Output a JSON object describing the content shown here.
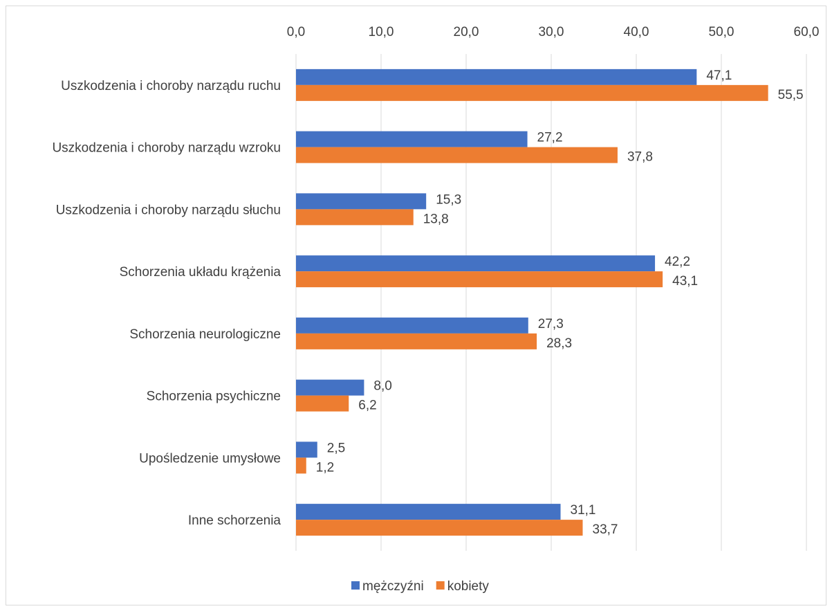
{
  "chart_data": {
    "type": "bar",
    "orientation": "horizontal",
    "categories": [
      "Uszkodzenia i choroby narządu ruchu",
      "Uszkodzenia i choroby narządu wzroku",
      "Uszkodzenia i choroby narządu słuchu",
      "Schorzenia układu krążenia",
      "Schorzenia neurologiczne",
      "Schorzenia psychiczne",
      "Upośledzenie umysłowe",
      "Inne schorzenia"
    ],
    "series": [
      {
        "name": "mężczyźni",
        "color": "#4472c4",
        "values": [
          47.1,
          27.2,
          15.3,
          42.2,
          27.3,
          8.0,
          2.5,
          31.1
        ],
        "labels": [
          "47,1",
          "27,2",
          "15,3",
          "42,2",
          "27,3",
          "8,0",
          "2,5",
          "31,1"
        ]
      },
      {
        "name": "kobiety",
        "color": "#ed7d31",
        "values": [
          55.5,
          37.8,
          13.8,
          43.1,
          28.3,
          6.2,
          1.2,
          33.7
        ],
        "labels": [
          "55,5",
          "37,8",
          "13,8",
          "43,1",
          "28,3",
          "6,2",
          "1,2",
          "33,7"
        ]
      }
    ],
    "xlim": [
      0,
      60
    ],
    "ticks": [
      0,
      10,
      20,
      30,
      40,
      50,
      60
    ],
    "tick_labels": [
      "0,0",
      "10,0",
      "20,0",
      "30,0",
      "40,0",
      "50,0",
      "60,0"
    ],
    "axis_position": "top",
    "grid": true,
    "gridline_color": "#d9d9d9",
    "legend_position": "bottom",
    "title": "",
    "xlabel": "",
    "ylabel": ""
  }
}
